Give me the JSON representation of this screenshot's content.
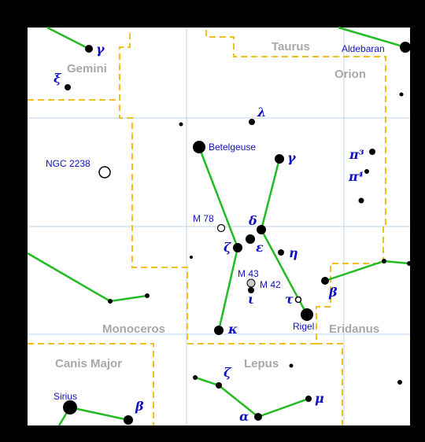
{
  "constellations": [
    "Taurus",
    "Gemini",
    "Orion",
    "Monoceros",
    "Eridanus",
    "Canis Major",
    "Lepus"
  ],
  "labels": [
    "Aldebaran",
    "γ",
    "ξ",
    "λ",
    "Betelgeuse",
    "γ",
    "NGC 2238",
    "π³",
    "π⁴",
    "M 78",
    "δ",
    "ζ",
    "ε",
    "η",
    "M 43",
    "M 42",
    "ι",
    "τ",
    "β",
    "Rigel",
    "κ",
    "Sirius",
    "β",
    "ζ",
    "μ",
    "α"
  ]
}
